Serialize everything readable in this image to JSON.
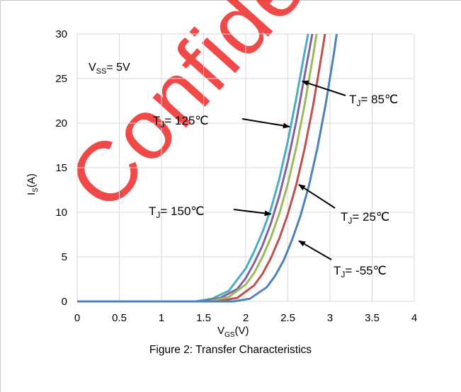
{
  "watermark_text": "Confidential",
  "caption": "Figure 2: Transfer Characteristics",
  "condition": {
    "main": "V",
    "sub": "SS",
    "rest": "= 5V"
  },
  "colors": {
    "T150": "#4bacc6",
    "T125": "#8064a2",
    "T85": "#9bbb59",
    "T25": "#c0504d",
    "Tm55": "#4f81bd",
    "grid": "#d9d9d9",
    "watermark": "#ee2828"
  },
  "chart_data": {
    "type": "line",
    "title": "",
    "xlabel": {
      "main": "V",
      "sub": "GS",
      "rest": "(V)"
    },
    "ylabel": {
      "main": "I",
      "sub": "S",
      "rest": "(A)"
    },
    "xlim": [
      0,
      4
    ],
    "ylim": [
      0,
      30
    ],
    "xticks": [
      "0",
      "0.5",
      "1",
      "1.5",
      "2",
      "2.5",
      "3",
      "3.5",
      "4"
    ],
    "yticks": [
      "0",
      "5",
      "10",
      "15",
      "20",
      "25",
      "30"
    ],
    "grid": true,
    "series": [
      {
        "key": "T150",
        "label": {
          "main": "T",
          "sub": "J",
          "rest": "= 150℃"
        },
        "threshold": 1.4,
        "points": [
          [
            0,
            0
          ],
          [
            1.4,
            0
          ],
          [
            1.6,
            0.3
          ],
          [
            1.8,
            1.2
          ],
          [
            2.0,
            3.7
          ],
          [
            2.1,
            5.6
          ],
          [
            2.2,
            7.8
          ],
          [
            2.3,
            10.4
          ],
          [
            2.4,
            13.8
          ],
          [
            2.5,
            18.0
          ],
          [
            2.6,
            22.8
          ],
          [
            2.7,
            28.0
          ],
          [
            2.74,
            30
          ]
        ]
      },
      {
        "key": "T125",
        "label": {
          "main": "T",
          "sub": "J",
          "rest": "= 125℃"
        },
        "threshold": 1.48,
        "points": [
          [
            0,
            0
          ],
          [
            1.48,
            0
          ],
          [
            1.7,
            0.4
          ],
          [
            1.9,
            1.4
          ],
          [
            2.0,
            2.6
          ],
          [
            2.1,
            4.3
          ],
          [
            2.2,
            6.3
          ],
          [
            2.3,
            8.8
          ],
          [
            2.4,
            11.9
          ],
          [
            2.5,
            15.7
          ],
          [
            2.6,
            20.2
          ],
          [
            2.7,
            25.4
          ],
          [
            2.79,
            30
          ]
        ]
      },
      {
        "key": "T85",
        "label": {
          "main": "T",
          "sub": "J",
          "rest": "= 85℃"
        },
        "threshold": 1.56,
        "points": [
          [
            0,
            0
          ],
          [
            1.56,
            0
          ],
          [
            1.8,
            0.5
          ],
          [
            2.0,
            1.9
          ],
          [
            2.1,
            3.2
          ],
          [
            2.2,
            5.0
          ],
          [
            2.3,
            7.2
          ],
          [
            2.4,
            9.9
          ],
          [
            2.5,
            13.2
          ],
          [
            2.6,
            17.3
          ],
          [
            2.7,
            22.1
          ],
          [
            2.8,
            27.6
          ],
          [
            2.84,
            30
          ]
        ]
      },
      {
        "key": "T25",
        "label": {
          "main": "T",
          "sub": "J",
          "rest": "= 25℃"
        },
        "threshold": 1.66,
        "points": [
          [
            0,
            0
          ],
          [
            1.66,
            0
          ],
          [
            1.9,
            0.4
          ],
          [
            2.1,
            1.8
          ],
          [
            2.2,
            3.1
          ],
          [
            2.3,
            4.9
          ],
          [
            2.4,
            7.1
          ],
          [
            2.5,
            9.8
          ],
          [
            2.6,
            13.1
          ],
          [
            2.7,
            17.2
          ],
          [
            2.8,
            22.0
          ],
          [
            2.9,
            27.6
          ],
          [
            2.94,
            30
          ]
        ]
      },
      {
        "key": "Tm55",
        "label": {
          "main": "T",
          "sub": "J",
          "rest": "= -55℃"
        },
        "threshold": 1.85,
        "points": [
          [
            0,
            0
          ],
          [
            1.85,
            0
          ],
          [
            2.05,
            0.3
          ],
          [
            2.25,
            1.6
          ],
          [
            2.35,
            2.9
          ],
          [
            2.45,
            4.6
          ],
          [
            2.55,
            6.9
          ],
          [
            2.65,
            9.6
          ],
          [
            2.75,
            13.0
          ],
          [
            2.85,
            17.2
          ],
          [
            2.95,
            22.2
          ],
          [
            3.05,
            28.0
          ],
          [
            3.08,
            30
          ]
        ]
      }
    ],
    "annotations": [
      {
        "series": "T125",
        "label": {
          "main": "T",
          "sub": "J",
          "rest": "= 125℃"
        },
        "point_to": [
          2.52,
          19.6
        ]
      },
      {
        "series": "T85",
        "label": {
          "main": "T",
          "sub": "J",
          "rest": "= 85℃"
        },
        "point_to": [
          2.67,
          24.7
        ]
      },
      {
        "series": "T150",
        "label": {
          "main": "T",
          "sub": "J",
          "rest": "= 150℃"
        },
        "point_to": [
          2.3,
          9.8
        ]
      },
      {
        "series": "T25",
        "label": {
          "main": "T",
          "sub": "J",
          "rest": "= 25℃"
        },
        "point_to": [
          2.63,
          13.1
        ]
      },
      {
        "series": "Tm55",
        "label": {
          "main": "T",
          "sub": "J",
          "rest": "= -55℃"
        },
        "point_to": [
          2.63,
          6.8
        ]
      }
    ]
  }
}
